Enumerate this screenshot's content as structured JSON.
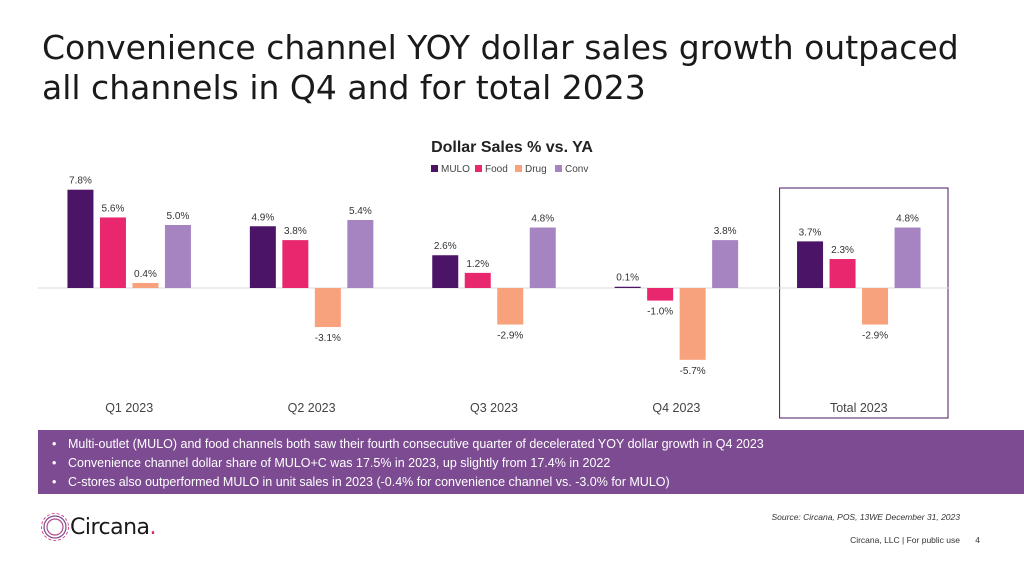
{
  "slide": {
    "title": "Convenience channel YOY dollar sales growth outpaced all channels in Q4 and for total 2023",
    "bullets": [
      "Multi-outlet (MULO) and food channels both saw their fourth consecutive quarter of decelerated YOY dollar growth in Q4 2023",
      "Convenience channel dollar share of MULO+C was 17.5% in 2023, up slightly from 17.4% in 2022",
      "C-stores also outperformed MULO in unit sales in 2023 (-0.4% for convenience channel vs. -3.0% for MULO)"
    ],
    "source": "Source: Circana, POS, 13WE December 31, 2023",
    "footer": "Circana, LLC | For public use",
    "page_number": "4",
    "logo": {
      "text": "Circana",
      "dot": "."
    }
  },
  "colors": {
    "MULO": "#4b1466",
    "Food": "#e8276f",
    "Drug": "#f7a27c",
    "Conv": "#a584c1",
    "highlight_box": "#4b1466",
    "bullet_band": "#7c4b91"
  },
  "chart_data": {
    "type": "bar",
    "title": "Dollar Sales % vs. YA",
    "categories": [
      "Q1 2023",
      "Q2 2023",
      "Q3 2023",
      "Q4 2023",
      "Total 2023"
    ],
    "series": [
      {
        "name": "MULO",
        "values": [
          7.8,
          4.9,
          2.6,
          0.1,
          3.7
        ]
      },
      {
        "name": "Food",
        "values": [
          5.6,
          3.8,
          1.2,
          -1.0,
          2.3
        ]
      },
      {
        "name": "Drug",
        "values": [
          0.4,
          -3.1,
          -2.9,
          -5.7,
          -2.9
        ]
      },
      {
        "name": "Conv",
        "values": [
          5.0,
          5.4,
          4.8,
          3.8,
          4.8
        ]
      }
    ],
    "value_suffix": "%",
    "highlighted_category": "Total 2023",
    "legend_position": "top-center",
    "grid": false,
    "xlabel": "",
    "ylabel": ""
  }
}
